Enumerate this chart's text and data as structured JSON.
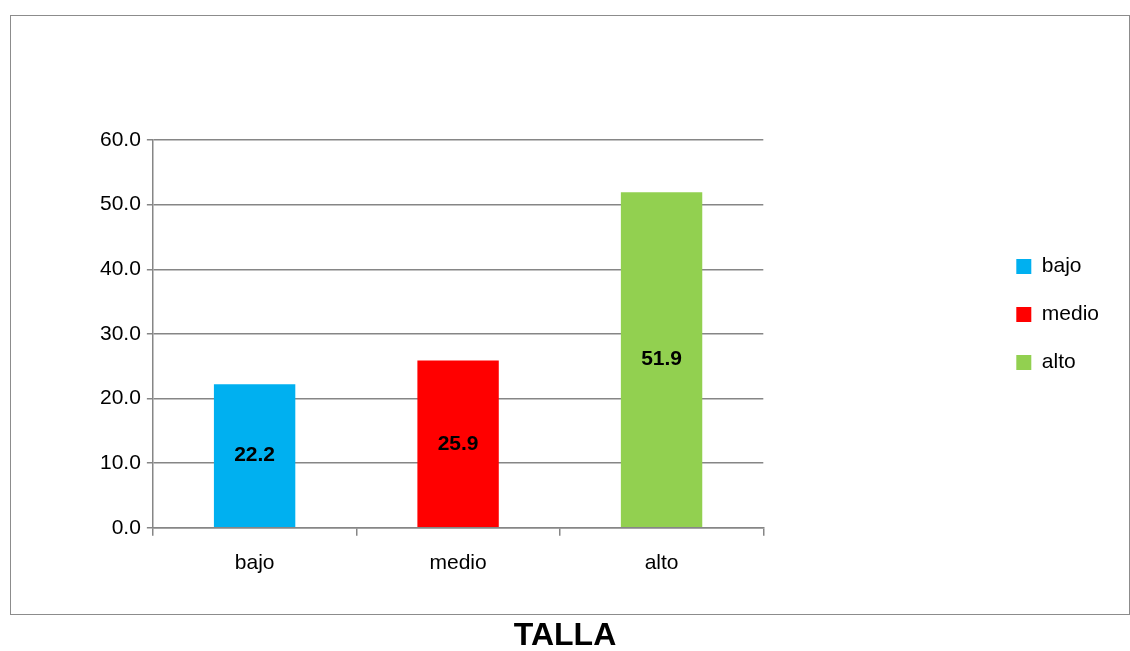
{
  "chart_data": {
    "type": "bar",
    "title": "TALLA",
    "categories": [
      "bajo",
      "medio",
      "alto"
    ],
    "series": [
      {
        "name": "bajo",
        "color": "#00b0f0",
        "values": [
          22.2,
          null,
          null
        ]
      },
      {
        "name": "medio",
        "color": "#ff0000",
        "values": [
          null,
          25.9,
          null
        ]
      },
      {
        "name": "alto",
        "color": "#92d050",
        "values": [
          null,
          null,
          51.9
        ]
      }
    ],
    "ylim": [
      0,
      60
    ],
    "yticks": [
      {
        "value": 0,
        "label": "0.0"
      },
      {
        "value": 10,
        "label": "10.0"
      },
      {
        "value": 20,
        "label": "20.0"
      },
      {
        "value": 30,
        "label": "30.0"
      },
      {
        "value": 40,
        "label": "40.0"
      },
      {
        "value": 50,
        "label": "50.0"
      },
      {
        "value": 60,
        "label": "60.0"
      }
    ],
    "grid": "y",
    "legend": "right",
    "data_labels": true
  }
}
